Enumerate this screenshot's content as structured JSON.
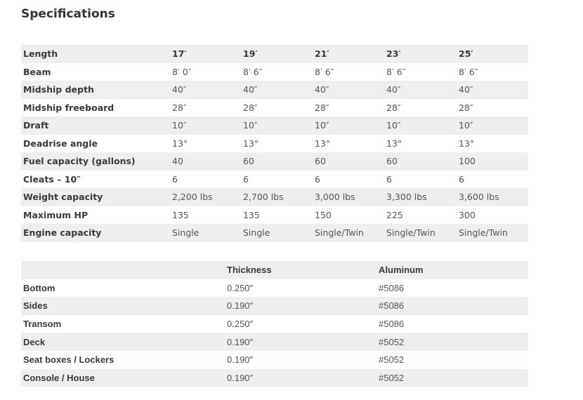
{
  "title": "Specifications",
  "specs": {
    "header": [
      "Length",
      "17′",
      "19′",
      "21′",
      "23′",
      "25′"
    ],
    "rows": [
      [
        "Beam",
        "8′ 0″",
        "8′ 6″",
        "8′ 6″",
        "8′ 6″",
        "8′ 6″"
      ],
      [
        "Midship depth",
        "40″",
        "40″",
        "40″",
        "40″",
        "40″"
      ],
      [
        "Midship freeboard",
        "28″",
        "28″",
        "28″",
        "28″",
        "28″"
      ],
      [
        "Draft",
        "10″",
        "10″",
        "10″",
        "10″",
        "10″"
      ],
      [
        "Deadrise angle",
        "13°",
        "13°",
        "13°",
        "13°",
        "13°"
      ],
      [
        "Fuel capacity (gallons)",
        "40",
        "60",
        "60",
        "60",
        "100"
      ],
      [
        "Cleats – 10″",
        "6",
        "6",
        "6",
        "6",
        "6"
      ],
      [
        "Weight capacity",
        "2,200 lbs",
        "2,700 lbs",
        "3,000 lbs",
        "3,300 lbs",
        "3,600 lbs"
      ],
      [
        "Maximum HP",
        "135",
        "135",
        "150",
        "225",
        "300"
      ],
      [
        "Engine capacity",
        "Single",
        "Single",
        "Single/Twin",
        "Single/Twin",
        "Single/Twin"
      ]
    ]
  },
  "materials": {
    "header": [
      "",
      "Thickness",
      "Aluminum"
    ],
    "rows": [
      [
        "Bottom",
        "0.250″",
        "#5086"
      ],
      [
        "Sides",
        "0.190″",
        "#5086"
      ],
      [
        "Transom",
        "0.250″",
        "#5086"
      ],
      [
        "Deck",
        "0.190″",
        "#5052"
      ],
      [
        "Seat boxes / Lockers",
        "0.190″",
        "#5052"
      ],
      [
        "Console / House",
        "0.190″",
        "#5052"
      ]
    ]
  }
}
